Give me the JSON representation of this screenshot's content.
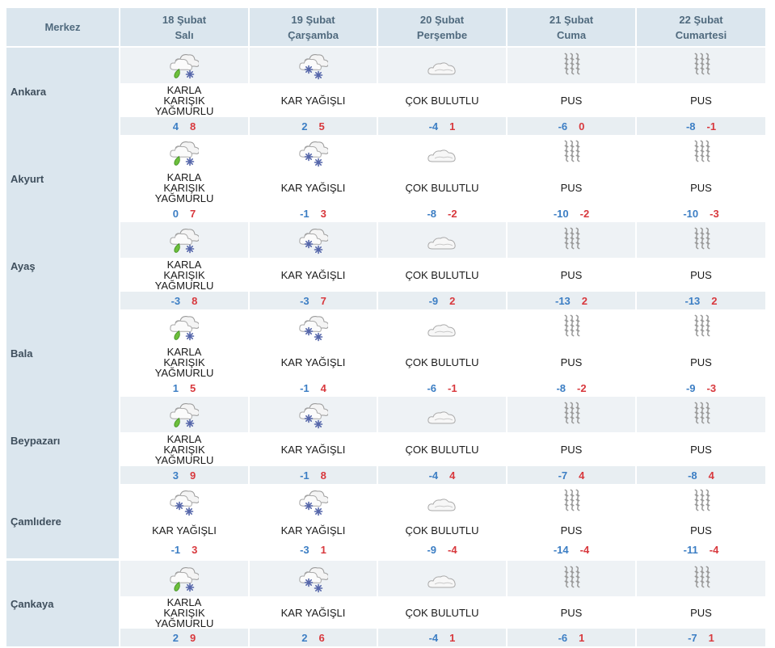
{
  "header": {
    "center_label": "Merkez",
    "days": [
      {
        "date": "18 Şubat",
        "weekday": "Salı"
      },
      {
        "date": "19 Şubat",
        "weekday": "Çarşamba"
      },
      {
        "date": "20 Şubat",
        "weekday": "Perşembe"
      },
      {
        "date": "21 Şubat",
        "weekday": "Cuma"
      },
      {
        "date": "22 Şubat",
        "weekday": "Cumartesi"
      }
    ]
  },
  "rows": [
    {
      "city": "Ankara",
      "days": [
        {
          "icon": "sleet-icon",
          "desc": "KARLA KARIŞIK YAĞMURLU",
          "low": "4",
          "high": "8"
        },
        {
          "icon": "snow-icon",
          "desc": "KAR YAĞIŞLI",
          "low": "2",
          "high": "5"
        },
        {
          "icon": "cloud-icon",
          "desc": "ÇOK BULUTLU",
          "low": "-4",
          "high": "1"
        },
        {
          "icon": "fog-icon",
          "desc": "PUS",
          "low": "-6",
          "high": "0"
        },
        {
          "icon": "fog-icon",
          "desc": "PUS",
          "low": "-8",
          "high": "-1"
        }
      ]
    },
    {
      "city": "Akyurt",
      "days": [
        {
          "icon": "sleet-icon",
          "desc": "KARLA KARIŞIK YAĞMURLU",
          "low": "0",
          "high": "7"
        },
        {
          "icon": "snow-icon",
          "desc": "KAR YAĞIŞLI",
          "low": "-1",
          "high": "3"
        },
        {
          "icon": "cloud-icon",
          "desc": "ÇOK BULUTLU",
          "low": "-8",
          "high": "-2"
        },
        {
          "icon": "fog-icon",
          "desc": "PUS",
          "low": "-10",
          "high": "-2"
        },
        {
          "icon": "fog-icon",
          "desc": "PUS",
          "low": "-10",
          "high": "-3"
        }
      ]
    },
    {
      "city": "Ayaş",
      "days": [
        {
          "icon": "sleet-icon",
          "desc": "KARLA KARIŞIK YAĞMURLU",
          "low": "-3",
          "high": "8"
        },
        {
          "icon": "snow-icon",
          "desc": "KAR YAĞIŞLI",
          "low": "-3",
          "high": "7"
        },
        {
          "icon": "cloud-icon",
          "desc": "ÇOK BULUTLU",
          "low": "-9",
          "high": "2"
        },
        {
          "icon": "fog-icon",
          "desc": "PUS",
          "low": "-13",
          "high": "2"
        },
        {
          "icon": "fog-icon",
          "desc": "PUS",
          "low": "-13",
          "high": "2"
        }
      ]
    },
    {
      "city": "Bala",
      "days": [
        {
          "icon": "sleet-icon",
          "desc": "KARLA KARIŞIK YAĞMURLU",
          "low": "1",
          "high": "5"
        },
        {
          "icon": "snow-icon",
          "desc": "KAR YAĞIŞLI",
          "low": "-1",
          "high": "4"
        },
        {
          "icon": "cloud-icon",
          "desc": "ÇOK BULUTLU",
          "low": "-6",
          "high": "-1"
        },
        {
          "icon": "fog-icon",
          "desc": "PUS",
          "low": "-8",
          "high": "-2"
        },
        {
          "icon": "fog-icon",
          "desc": "PUS",
          "low": "-9",
          "high": "-3"
        }
      ]
    },
    {
      "city": "Beypazarı",
      "days": [
        {
          "icon": "sleet-icon",
          "desc": "KARLA KARIŞIK YAĞMURLU",
          "low": "3",
          "high": "9"
        },
        {
          "icon": "snow-icon",
          "desc": "KAR YAĞIŞLI",
          "low": "-1",
          "high": "8"
        },
        {
          "icon": "cloud-icon",
          "desc": "ÇOK BULUTLU",
          "low": "-4",
          "high": "4"
        },
        {
          "icon": "fog-icon",
          "desc": "PUS",
          "low": "-7",
          "high": "4"
        },
        {
          "icon": "fog-icon",
          "desc": "PUS",
          "low": "-8",
          "high": "4"
        }
      ]
    },
    {
      "city": "Çamlıdere",
      "days": [
        {
          "icon": "snow-icon",
          "desc": "KAR YAĞIŞLI",
          "low": "-1",
          "high": "3"
        },
        {
          "icon": "snow-icon",
          "desc": "KAR YAĞIŞLI",
          "low": "-3",
          "high": "1"
        },
        {
          "icon": "cloud-icon",
          "desc": "ÇOK BULUTLU",
          "low": "-9",
          "high": "-4"
        },
        {
          "icon": "fog-icon",
          "desc": "PUS",
          "low": "-14",
          "high": "-4"
        },
        {
          "icon": "fog-icon",
          "desc": "PUS",
          "low": "-11",
          "high": "-4"
        }
      ]
    },
    {
      "city": "Çankaya",
      "days": [
        {
          "icon": "sleet-icon",
          "desc": "KARLA KARIŞIK YAĞMURLU",
          "low": "2",
          "high": "9"
        },
        {
          "icon": "snow-icon",
          "desc": "KAR YAĞIŞLI",
          "low": "2",
          "high": "6"
        },
        {
          "icon": "cloud-icon",
          "desc": "ÇOK BULUTLU",
          "low": "-4",
          "high": "1"
        },
        {
          "icon": "fog-icon",
          "desc": "PUS",
          "low": "-6",
          "high": "1"
        },
        {
          "icon": "fog-icon",
          "desc": "PUS",
          "low": "-7",
          "high": "1"
        }
      ]
    }
  ],
  "colors": {
    "header_bg": "#dbe6ee",
    "low_temp": "#3c7ec4",
    "high_temp": "#d8383d"
  }
}
